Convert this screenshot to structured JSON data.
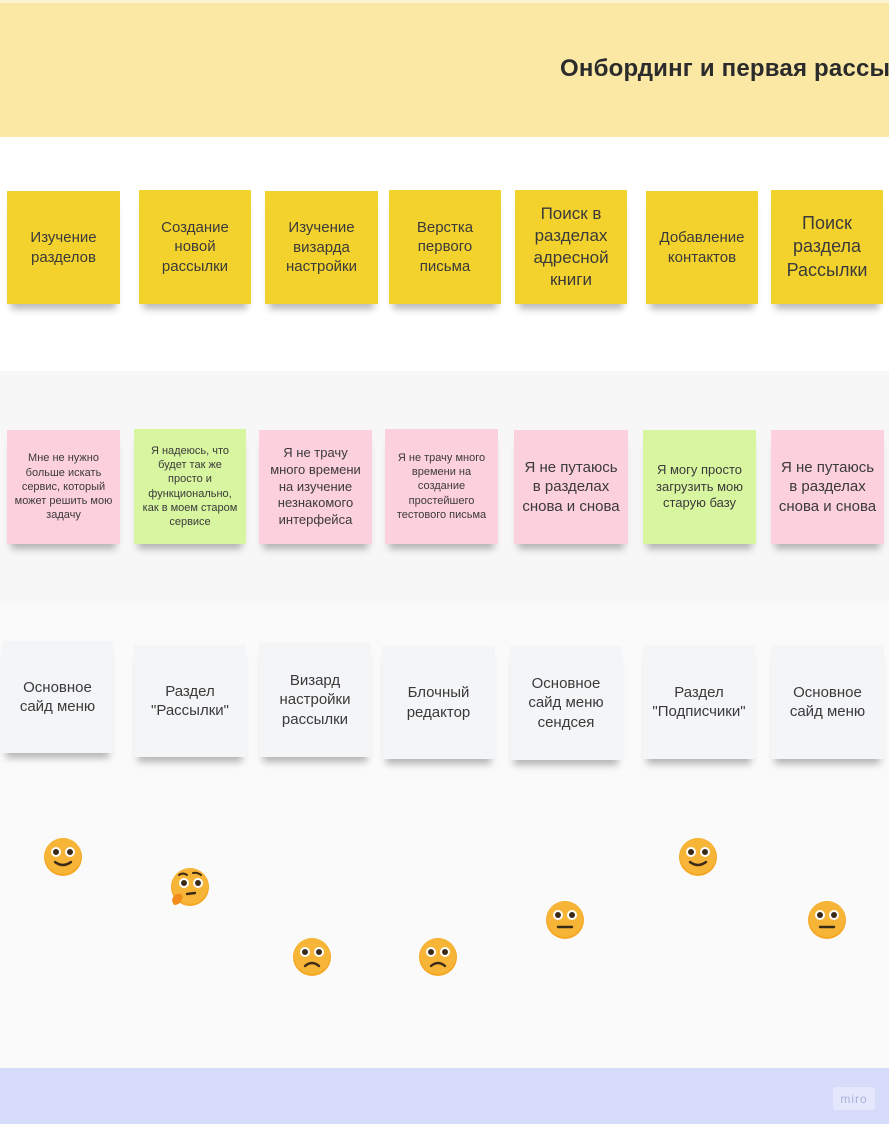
{
  "header": {
    "title": "Онбординг и первая рассылка"
  },
  "steps": [
    "Изучение разделов",
    "Создание новой рассылки",
    "Изучение визарда настройки",
    "Верстка первого письма",
    "Поиск в разделах адресной книги",
    "Добавление контактов",
    "Поиск раздела Рассылки"
  ],
  "feelings": [
    "Мне не нужно больше искать сервис, который может решить мою задачу",
    "Я надеюсь, что будет так же просто и функционально, как в моем старом сервисе",
    "Я не трачу много времени на изучение незнакомого интерфейса",
    "Я не трачу много времени на создание простейшего тестового письма",
    "Я не путаюсь в разделах снова и снова",
    "Я могу просто загрузить мою старую базу",
    "Я не путаюсь в разделах снова и снова"
  ],
  "touchpoints": [
    "Основное сайд меню",
    "Раздел \"Рассылки\"",
    "Визард настройки рассылки",
    "Блочный редактор",
    "Основное сайд меню сендсея",
    "Раздел \"Подписчики\"",
    "Основное сайд меню"
  ],
  "emotions": [
    "happy",
    "thinking",
    "sad",
    "sad",
    "neutral",
    "happy",
    "neutral"
  ],
  "colors": {
    "header_band": "#fae8a4",
    "step_sticky": "#f4d22e",
    "pink_sticky": "#fdd0dd",
    "green_sticky": "#d8f5a0",
    "touch_sticky": "#f4f5f7",
    "footer_band": "#d7dcfb",
    "emoji_face": "#f5a623"
  },
  "footer": {
    "brand": "miro"
  }
}
